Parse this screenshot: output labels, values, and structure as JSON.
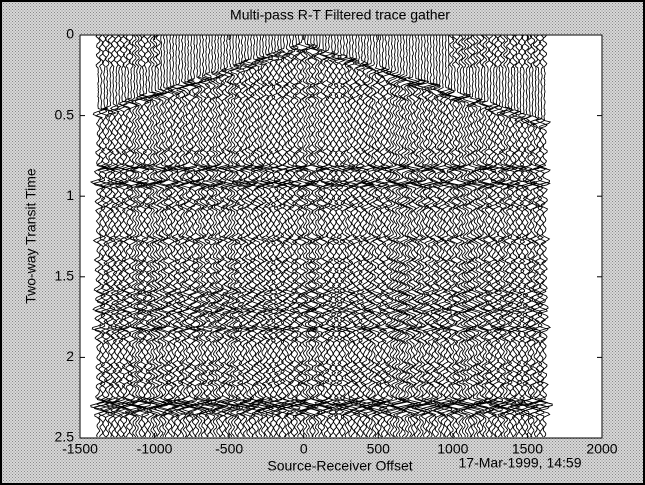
{
  "chart_data": {
    "type": "wiggle",
    "title": "Multi-pass R-T Filtered trace gather",
    "xlabel": "Source-Receiver Offset",
    "ylabel": "Two-way Transit Time",
    "annotation": "17-Mar-1999, 14:59",
    "xlim": [
      -1500,
      2000
    ],
    "xticks": [
      -1500,
      -1000,
      -500,
      0,
      500,
      1000,
      1500,
      2000
    ],
    "ylim": [
      2.5,
      0
    ],
    "yticks": [
      0,
      0.5,
      1,
      1.5,
      2,
      2.5
    ]
  }
}
